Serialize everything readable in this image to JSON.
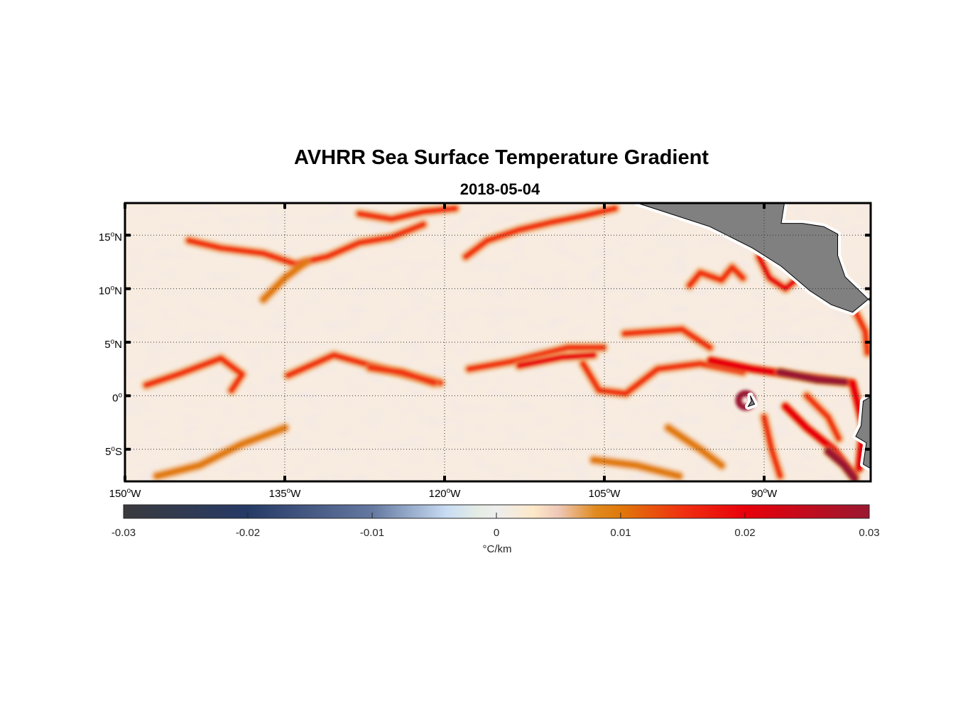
{
  "chart_data": {
    "type": "heatmap",
    "title": "AVHRR Sea Surface Temperature Gradient",
    "subtitle": "2018-05-04",
    "lon_range": [
      -150,
      -80
    ],
    "lat_range": [
      -8,
      18
    ],
    "lon_ticks": [
      {
        "v": -150,
        "label": "150",
        "hemi": "W"
      },
      {
        "v": -135,
        "label": "135",
        "hemi": "W"
      },
      {
        "v": -120,
        "label": "120",
        "hemi": "W"
      },
      {
        "v": -105,
        "label": "105",
        "hemi": "W"
      },
      {
        "v": -90,
        "label": "90",
        "hemi": "W"
      }
    ],
    "lat_ticks": [
      {
        "v": 15,
        "label": "15",
        "hemi": "N"
      },
      {
        "v": 10,
        "label": "10",
        "hemi": "N"
      },
      {
        "v": 5,
        "label": "5",
        "hemi": "N"
      },
      {
        "v": 0,
        "label": "0",
        "hemi": ""
      },
      {
        "v": -5,
        "label": "5",
        "hemi": "S"
      }
    ],
    "grid": true,
    "colorbar": {
      "range": [
        -0.03,
        0.03
      ],
      "ticks": [
        "-0.03",
        "-0.02",
        "-0.01",
        "0",
        "0.01",
        "0.02",
        "0.03"
      ],
      "tick_values": [
        -0.03,
        -0.02,
        -0.01,
        0,
        0.01,
        0.02,
        0.03
      ],
      "label": "°C/km",
      "stops": [
        [
          -0.03,
          "#3a3a3e"
        ],
        [
          -0.02,
          "#263a66"
        ],
        [
          -0.01,
          "#6478a0"
        ],
        [
          -0.004,
          "#c8dcf4"
        ],
        [
          -0.0015,
          "#e4ece4"
        ],
        [
          0,
          "#eeeeee"
        ],
        [
          0.003,
          "#fde8c8"
        ],
        [
          0.005,
          "#eec8b8"
        ],
        [
          0.008,
          "#e08a1e"
        ],
        [
          0.01,
          "#e0780a"
        ],
        [
          0.015,
          "#f03010"
        ],
        [
          0.02,
          "#e8000a"
        ],
        [
          0.03,
          "#9a1830"
        ]
      ]
    },
    "background_value_color": "#f8ece0",
    "land_color": "#808080",
    "fronts": [
      {
        "value": 0.012,
        "pts": [
          [
            -134.7,
            1.9
          ],
          [
            -130.4,
            3.8
          ],
          [
            -125.7,
            2.5
          ],
          [
            -120.4,
            1.2
          ]
        ]
      },
      {
        "value": 0.015,
        "pts": [
          [
            -127,
            2.6
          ],
          [
            -124,
            2.2
          ],
          [
            -121,
            1.2
          ]
        ]
      },
      {
        "value": 0.012,
        "pts": [
          [
            -117.7,
            2.5
          ],
          [
            -113.7,
            3.2
          ],
          [
            -108.4,
            4.5
          ],
          [
            -105.1,
            4.5
          ]
        ]
      },
      {
        "value": 0.016,
        "pts": [
          [
            -113,
            2.8
          ],
          [
            -109,
            3.6
          ],
          [
            -106,
            3.8
          ]
        ]
      },
      {
        "value": 0.012,
        "pts": [
          [
            -107,
            3
          ],
          [
            -105.5,
            0.5
          ],
          [
            -103,
            0.2
          ],
          [
            -100,
            2.5
          ],
          [
            -96,
            3
          ],
          [
            -92,
            2.2
          ]
        ]
      },
      {
        "value": 0.011,
        "pts": [
          [
            -103.1,
            5.8
          ],
          [
            -97.7,
            6.2
          ],
          [
            -95.1,
            4.5
          ]
        ]
      },
      {
        "value": 0.02,
        "pts": [
          [
            -95,
            3.3
          ],
          [
            -91.1,
            2.5
          ],
          [
            -87.1,
            1.9
          ],
          [
            -81.7,
            1.2
          ],
          [
            -80.7,
            -2.8
          ],
          [
            -81.1,
            -6.8
          ]
        ]
      },
      {
        "value": 0.026,
        "pts": [
          [
            -88.5,
            2.2
          ],
          [
            -85,
            1.5
          ],
          [
            -82.5,
            1.3
          ]
        ]
      },
      {
        "value": 0.02,
        "pts": [
          [
            -88,
            -1
          ],
          [
            -86,
            -3
          ],
          [
            -83.5,
            -5
          ],
          [
            -81.5,
            -7.5
          ]
        ]
      },
      {
        "value": 0.027,
        "pts": [
          [
            -84,
            -5.2
          ],
          [
            -82.5,
            -6.5
          ],
          [
            -81.5,
            -7.8
          ]
        ]
      },
      {
        "value": 0.014,
        "pts": [
          [
            -90,
            -2
          ],
          [
            -89.3,
            -5
          ],
          [
            -88.5,
            -7.5
          ]
        ]
      },
      {
        "value": 0.012,
        "pts": [
          [
            -86,
            0
          ],
          [
            -84,
            -2
          ],
          [
            -83,
            -4
          ]
        ]
      },
      {
        "value": 0.011,
        "pts": [
          [
            -144,
            14.5
          ],
          [
            -141,
            13.8
          ],
          [
            -137,
            13.3
          ],
          [
            -134,
            12.3
          ],
          [
            -131,
            13
          ],
          [
            -128,
            14.3
          ],
          [
            -125,
            14.8
          ],
          [
            -122,
            16
          ]
        ]
      },
      {
        "value": 0.015,
        "pts": [
          [
            -128,
            17
          ],
          [
            -125,
            16.5
          ],
          [
            -122,
            17.2
          ],
          [
            -119,
            17.5
          ]
        ]
      },
      {
        "value": 0.011,
        "pts": [
          [
            -118,
            13
          ],
          [
            -116,
            14.5
          ],
          [
            -113,
            15.5
          ],
          [
            -110,
            16.2
          ],
          [
            -107,
            16.8
          ],
          [
            -104,
            17.5
          ]
        ]
      },
      {
        "value": 0.012,
        "pts": [
          [
            -97,
            10.3
          ],
          [
            -96,
            11.5
          ],
          [
            -94,
            10.8
          ],
          [
            -93,
            12
          ],
          [
            -92,
            11
          ]
        ]
      },
      {
        "value": 0.018,
        "pts": [
          [
            -90.5,
            13
          ],
          [
            -89.5,
            11
          ],
          [
            -88,
            10
          ],
          [
            -86.8,
            11
          ],
          [
            -87.8,
            12.5
          ]
        ]
      },
      {
        "value": 0.011,
        "pts": [
          [
            -148,
            1
          ],
          [
            -145,
            2
          ],
          [
            -141,
            3.5
          ],
          [
            -139,
            2
          ],
          [
            -140,
            0.5
          ]
        ]
      },
      {
        "value": 0.009,
        "pts": [
          [
            -147,
            -7.5
          ],
          [
            -143,
            -6.5
          ],
          [
            -139,
            -4.5
          ],
          [
            -135,
            -3
          ]
        ]
      },
      {
        "value": 0.009,
        "pts": [
          [
            -137,
            9
          ],
          [
            -135,
            11
          ],
          [
            -133,
            12.5
          ]
        ]
      },
      {
        "value": 0.013,
        "pts": [
          [
            -81.5,
            8
          ],
          [
            -80.5,
            6
          ],
          [
            -80.3,
            4
          ]
        ]
      },
      {
        "value": 0.009,
        "pts": [
          [
            -99,
            -3
          ],
          [
            -96,
            -5
          ],
          [
            -94,
            -6.5
          ]
        ]
      },
      {
        "value": 0.009,
        "pts": [
          [
            -106,
            -6
          ],
          [
            -102,
            -6.5
          ],
          [
            -98,
            -7.5
          ]
        ]
      }
    ],
    "eddies": [
      {
        "lon": -91.6,
        "lat": -0.3,
        "value": 0.028
      }
    ],
    "land": [
      [
        [
          -101.9,
          18
        ],
        [
          -99.1,
          17.1
        ],
        [
          -95.1,
          15.8
        ],
        [
          -91.1,
          13.8
        ],
        [
          -88.4,
          12.1
        ],
        [
          -85.7,
          9.8
        ],
        [
          -83.7,
          8.5
        ],
        [
          -81.7,
          7.8
        ],
        [
          -80,
          9.2
        ],
        [
          -80,
          8.8
        ],
        [
          -82.4,
          11.1
        ],
        [
          -83.1,
          13.1
        ],
        [
          -83.1,
          15.1
        ],
        [
          -84.4,
          15.8
        ],
        [
          -86.4,
          16.1
        ],
        [
          -88.4,
          16.1
        ],
        [
          -88.1,
          18
        ]
      ],
      [
        [
          -80,
          -0.1
        ],
        [
          -80.7,
          -0.5
        ],
        [
          -80.9,
          -2.8
        ],
        [
          -81.4,
          -3.8
        ],
        [
          -80.4,
          -4.4
        ],
        [
          -80.7,
          -6.4
        ],
        [
          -80,
          -6.8
        ]
      ],
      [
        [
          -91.3,
          0
        ],
        [
          -90.9,
          -0.8
        ],
        [
          -91.5,
          -1
        ],
        [
          -91.2,
          -0.5
        ]
      ]
    ]
  }
}
